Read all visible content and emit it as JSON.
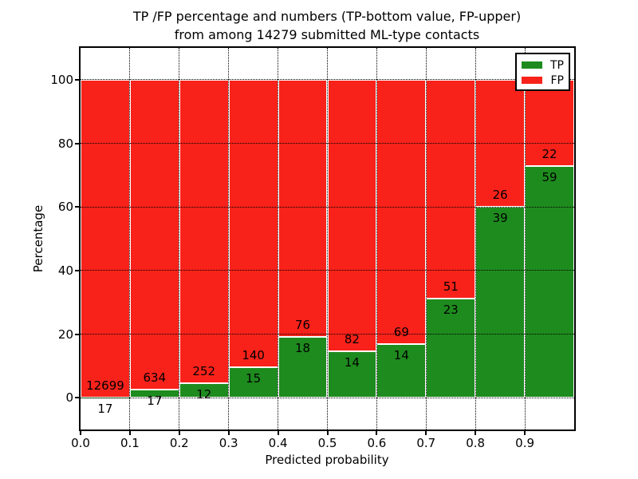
{
  "title": {
    "line1": "TP /FP percentage and numbers (TP-bottom value, FP-upper)",
    "line2": "from among 14279 submitted ML-type contacts"
  },
  "axes": {
    "xlabel": "Predicted probability",
    "ylabel": "Percentage",
    "xticks": [
      "0.0",
      "0.1",
      "0.2",
      "0.3",
      "0.4",
      "0.5",
      "0.6",
      "0.7",
      "0.8",
      "0.9"
    ],
    "yticks": [
      0,
      20,
      40,
      60,
      80,
      100
    ]
  },
  "legend": {
    "position": "upper right",
    "items": [
      {
        "label": "TP",
        "color": "#1e8b1e"
      },
      {
        "label": "FP",
        "color": "#f8221a"
      }
    ]
  },
  "colors": {
    "tp": "#1e8b1e",
    "fp": "#f8221a",
    "grid": "#000000",
    "bar_edge": "#ffffff",
    "text": "#000000",
    "background": "#ffffff"
  },
  "chart_data": {
    "type": "bar",
    "stacked": true,
    "title": "TP /FP percentage and numbers (TP-bottom value, FP-upper) from among 14279 submitted ML-type contacts",
    "xlabel": "Predicted probability",
    "ylabel": "Percentage",
    "total_contacts": 14279,
    "xlim": [
      0,
      1
    ],
    "ylim": [
      -10,
      110
    ],
    "grid": true,
    "legend_position": "upper right",
    "bin_width": 0.1,
    "bin_starts": [
      0.0,
      0.1,
      0.2,
      0.3,
      0.4,
      0.5,
      0.6,
      0.7,
      0.8,
      0.9
    ],
    "series": [
      {
        "name": "TP",
        "color": "#1e8b1e",
        "counts": [
          17,
          17,
          12,
          15,
          18,
          14,
          14,
          23,
          39,
          59
        ],
        "percents": [
          0.13,
          2.61,
          4.55,
          9.68,
          19.15,
          14.58,
          16.87,
          31.08,
          60.0,
          72.84
        ]
      },
      {
        "name": "FP",
        "color": "#f8221a",
        "counts": [
          12699,
          634,
          252,
          140,
          76,
          82,
          69,
          51,
          26,
          22
        ],
        "percents": [
          99.87,
          97.39,
          95.45,
          90.32,
          80.85,
          85.42,
          83.13,
          68.92,
          40.0,
          27.16
        ]
      }
    ]
  }
}
